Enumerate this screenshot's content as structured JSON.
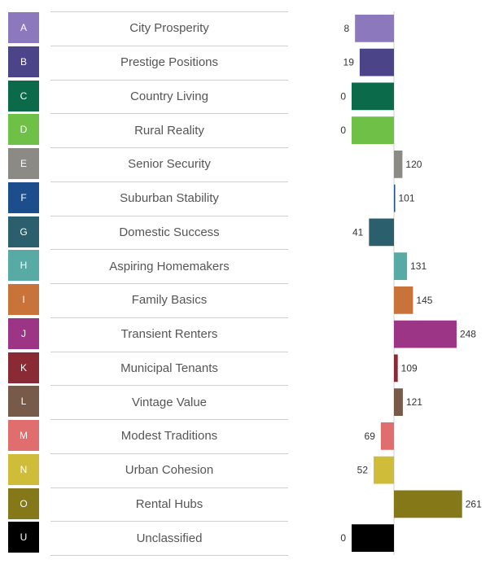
{
  "chart_data": {
    "type": "bar",
    "orientation": "horizontal",
    "diverging": true,
    "categories": [
      {
        "code": "A",
        "name": "City Prosperity",
        "value": 8,
        "color": "#8c78bc"
      },
      {
        "code": "B",
        "name": "Prestige Positions",
        "value": 19,
        "color": "#4b4488"
      },
      {
        "code": "C",
        "name": "Country Living",
        "value": 0,
        "color": "#0a6a4a"
      },
      {
        "code": "D",
        "name": "Rural Reality",
        "value": 0,
        "color": "#6ec046"
      },
      {
        "code": "E",
        "name": "Senior Security",
        "value": 120,
        "color": "#8c8a84"
      },
      {
        "code": "F",
        "name": "Suburban Stability",
        "value": 101,
        "color": "#1c4e8e"
      },
      {
        "code": "G",
        "name": "Domestic Success",
        "value": 41,
        "color": "#2c5f6e"
      },
      {
        "code": "H",
        "name": "Aspiring Homemakers",
        "value": 131,
        "color": "#58aaa4"
      },
      {
        "code": "I",
        "name": "Family Basics",
        "value": 145,
        "color": "#c7733a"
      },
      {
        "code": "J",
        "name": "Transient Renters",
        "value": 248,
        "color": "#9c3585"
      },
      {
        "code": "K",
        "name": "Municipal Tenants",
        "value": 109,
        "color": "#8a2a34"
      },
      {
        "code": "L",
        "name": "Vintage Value",
        "value": 121,
        "color": "#775a49"
      },
      {
        "code": "M",
        "name": "Modest Traditions",
        "value": 69,
        "color": "#e06e6e"
      },
      {
        "code": "N",
        "name": "Urban Cohesion",
        "value": 52,
        "color": "#cfbd39"
      },
      {
        "code": "O",
        "name": "Rental Hubs",
        "value": 261,
        "color": "#857818"
      },
      {
        "code": "U",
        "name": "Unclassified",
        "value": 0,
        "color": "#000000"
      }
    ],
    "bar_direction": [
      "left",
      "left",
      "left",
      "left",
      "right",
      "right",
      "left",
      "right",
      "right",
      "right",
      "right",
      "right",
      "left",
      "left",
      "right",
      "left"
    ],
    "center_value": 100,
    "grid": false,
    "legend": "none"
  }
}
